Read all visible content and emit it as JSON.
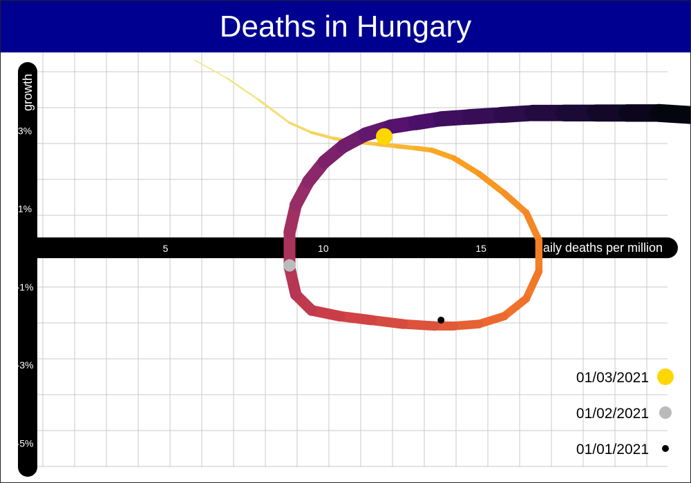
{
  "title": "Deaths in Hungary",
  "chart_data": {
    "type": "line",
    "title": "Deaths in Hungary",
    "xlabel": "daily deaths per million",
    "ylabel": "growth",
    "xlim": [
      0.5,
      21.5
    ],
    "ylim": [
      -6,
      5
    ],
    "x_ticks": [
      5,
      10,
      15
    ],
    "x_tick_labels": [
      "5",
      "10",
      "15"
    ],
    "y_ticks": [
      3,
      1,
      -1,
      -3,
      -5
    ],
    "y_tick_labels": [
      "3%",
      "1%",
      "-1%",
      "-3%",
      "-5%"
    ],
    "grid": true,
    "legend_position": "bottom-right",
    "series": [
      {
        "x": [
          5.8,
          6.8,
          7.8,
          8.8,
          9.5,
          10.2,
          11.0,
          11.6,
          12.2,
          12.8,
          13.3,
          14.0,
          14.8,
          15.6,
          16.3,
          16.7,
          16.7,
          16.3,
          15.6,
          14.8,
          14.0,
          13.4,
          12.4,
          11.4,
          10.4,
          9.5,
          9.0,
          8.8,
          8.8,
          9.0,
          9.4,
          9.9,
          10.5,
          11.2,
          12.0,
          12.8,
          13.6,
          14.5,
          15.5,
          16.5,
          17.5,
          18.5,
          19.5,
          20.5,
          21.5
        ],
        "y": [
          4.8,
          4.35,
          3.8,
          3.2,
          2.95,
          2.8,
          2.7,
          2.65,
          2.6,
          2.55,
          2.5,
          2.3,
          1.9,
          1.4,
          0.9,
          0.2,
          -0.6,
          -1.3,
          -1.75,
          -1.95,
          -2.0,
          -2.0,
          -1.95,
          -1.85,
          -1.75,
          -1.6,
          -1.2,
          -0.5,
          0.4,
          1.1,
          1.7,
          2.2,
          2.6,
          2.9,
          3.1,
          3.2,
          3.3,
          3.35,
          3.4,
          3.45,
          3.45,
          3.45,
          3.45,
          3.45,
          3.4
        ]
      }
    ],
    "markers": [
      {
        "label": "01/03/2021",
        "x": 11.8,
        "y": 2.85,
        "color": "#FFD700"
      },
      {
        "label": "01/02/2021",
        "x": 8.8,
        "y": -0.45,
        "color": "#BBBBBB"
      },
      {
        "label": "01/01/2021",
        "x": 13.6,
        "y": -1.85,
        "color": "#000000"
      }
    ],
    "legend": [
      {
        "label": "01/03/2021",
        "color": "#FFD700"
      },
      {
        "label": "01/02/2021",
        "color": "#BBBBBB"
      },
      {
        "label": "01/01/2021",
        "color": "#000000"
      }
    ]
  }
}
